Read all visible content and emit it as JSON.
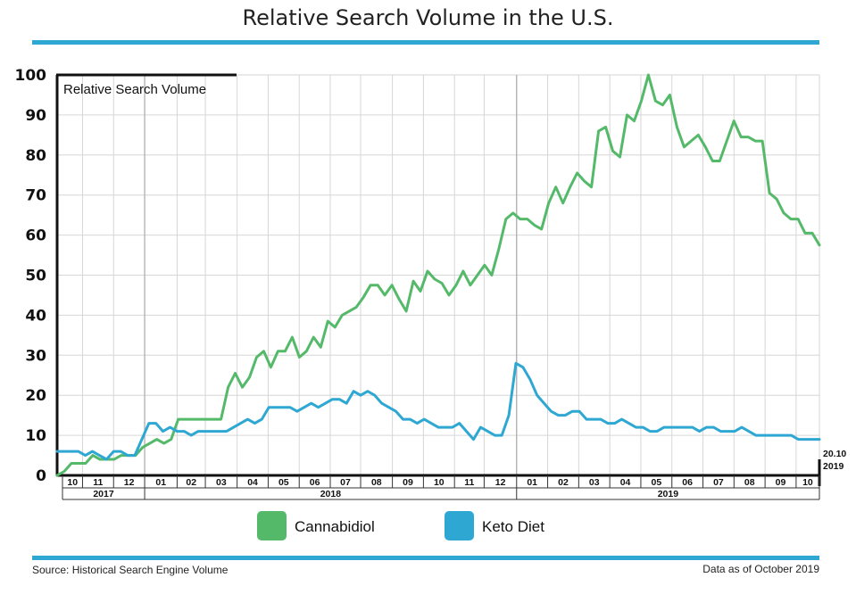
{
  "chart_data": {
    "type": "line",
    "title": "Relative Search Volume in the U.S.",
    "ylabel": "Relative Search Volume",
    "ylim": [
      0,
      100
    ],
    "yticks": [
      0,
      10,
      20,
      30,
      40,
      50,
      60,
      70,
      80,
      90,
      100
    ],
    "grid": true,
    "x_unit": "week index from start of Oct 2017",
    "x_range": [
      0,
      108
    ],
    "months": [
      {
        "label": "10",
        "start": 0,
        "end": 3.6
      },
      {
        "label": "11",
        "start": 3.6,
        "end": 8
      },
      {
        "label": "12",
        "start": 8,
        "end": 12.4
      },
      {
        "label": "01",
        "start": 12.4,
        "end": 17
      },
      {
        "label": "02",
        "start": 17,
        "end": 21
      },
      {
        "label": "03",
        "start": 21,
        "end": 25.5
      },
      {
        "label": "04",
        "start": 25.5,
        "end": 29.9
      },
      {
        "label": "05",
        "start": 29.9,
        "end": 34.3
      },
      {
        "label": "06",
        "start": 34.3,
        "end": 38.7
      },
      {
        "label": "07",
        "start": 38.7,
        "end": 43
      },
      {
        "label": "08",
        "start": 43,
        "end": 47.5
      },
      {
        "label": "09",
        "start": 47.5,
        "end": 51.9
      },
      {
        "label": "10",
        "start": 51.9,
        "end": 56.3
      },
      {
        "label": "11",
        "start": 56.3,
        "end": 60.5
      },
      {
        "label": "12",
        "start": 60.5,
        "end": 65.1
      },
      {
        "label": "01",
        "start": 65.1,
        "end": 69.5
      },
      {
        "label": "02",
        "start": 69.5,
        "end": 73.9
      },
      {
        "label": "03",
        "start": 73.9,
        "end": 78.3
      },
      {
        "label": "04",
        "start": 78.3,
        "end": 82.7
      },
      {
        "label": "05",
        "start": 82.7,
        "end": 87.1
      },
      {
        "label": "06",
        "start": 87.1,
        "end": 91.5
      },
      {
        "label": "07",
        "start": 91.5,
        "end": 95.9
      },
      {
        "label": "08",
        "start": 95.9,
        "end": 100.3
      },
      {
        "label": "09",
        "start": 100.3,
        "end": 104.7
      },
      {
        "label": "10",
        "start": 104.7,
        "end": 108
      }
    ],
    "years": [
      {
        "label": "2017",
        "start": 0,
        "end": 12.4
      },
      {
        "label": "2018",
        "start": 12.4,
        "end": 65.1
      },
      {
        "label": "2019",
        "start": 65.1,
        "end": 108
      }
    ],
    "end_annotation": {
      "line1": "20.10",
      "line2": "2019"
    },
    "series": [
      {
        "name": "Cannabidiol",
        "color": "#55b96a",
        "values": [
          0,
          1,
          3,
          3,
          3,
          5,
          4,
          4,
          4,
          5,
          5,
          5,
          7,
          8,
          9,
          8,
          9,
          14,
          14,
          14,
          14,
          14,
          14,
          14,
          22,
          25.5,
          22,
          24.5,
          29.5,
          31,
          27,
          31,
          31,
          34.5,
          29.5,
          31,
          34.5,
          32,
          38.5,
          37,
          40,
          41,
          42,
          44.5,
          47.5,
          47.5,
          45,
          47.5,
          44,
          41,
          48.5,
          46,
          51,
          49,
          48,
          45,
          47.5,
          51,
          47.5,
          50,
          52.5,
          50,
          56.5,
          64,
          65.5,
          64,
          64,
          62.5,
          61.5,
          68,
          72,
          68,
          72,
          75.5,
          73.5,
          72,
          86,
          87,
          81,
          79.5,
          90,
          88.5,
          93.5,
          100,
          93.5,
          92.5,
          95,
          87,
          82,
          83.5,
          85,
          82,
          78.5,
          78.5,
          83.5,
          88.5,
          84.5,
          84.5,
          83.5,
          83.5,
          70.5,
          69,
          65.5,
          64,
          64,
          60.5,
          60.5,
          57.5
        ]
      },
      {
        "name": "Keto Diet",
        "color": "#2ea8d2",
        "values": [
          6,
          6,
          6,
          6,
          5,
          6,
          5,
          4,
          6,
          6,
          5,
          5,
          9,
          13,
          13,
          11,
          12,
          11,
          11,
          10,
          11,
          11,
          11,
          11,
          11,
          12,
          13,
          14,
          13,
          14,
          17,
          17,
          17,
          17,
          16,
          17,
          18,
          17,
          18,
          19,
          19,
          18,
          21,
          20,
          21,
          20,
          18,
          17,
          16,
          14,
          14,
          13,
          14,
          13,
          12,
          12,
          12,
          13,
          11,
          9,
          12,
          11,
          10,
          10,
          15,
          28,
          27,
          24,
          20,
          18,
          16,
          15,
          15,
          16,
          16,
          14,
          14,
          14,
          13,
          13,
          14,
          13,
          12,
          12,
          11,
          11,
          12,
          12,
          12,
          12,
          12,
          11,
          12,
          12,
          11,
          11,
          11,
          12,
          11,
          10,
          10,
          10,
          10,
          10,
          10,
          9,
          9,
          9,
          9
        ]
      }
    ]
  },
  "footer": {
    "source": "Source: Historical Search Engine Volume",
    "asof": "Data as of October 2019"
  },
  "colors": {
    "rule": "#2ea8d2",
    "grid": "#d6d6d6",
    "axis": "#111111"
  }
}
